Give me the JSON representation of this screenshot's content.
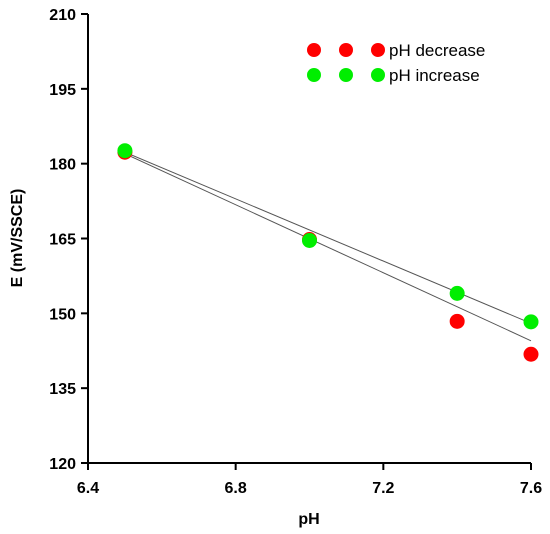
{
  "chart_data": {
    "type": "scatter",
    "xlabel": "pH",
    "ylabel": "E  (mV/SSCE)",
    "xlim": [
      6.4,
      7.6
    ],
    "ylim": [
      120,
      210
    ],
    "x_ticks": [
      "6.4",
      "6.8",
      "7.2",
      "7.6"
    ],
    "y_ticks": [
      "120",
      "135",
      "150",
      "165",
      "180",
      "195",
      "210"
    ],
    "grid": false,
    "legend_position": "top-right",
    "series": [
      {
        "name": "pH decrease",
        "color": "#ff0000",
        "x": [
          6.5,
          7.0,
          7.4,
          7.6
        ],
        "y": [
          182.3,
          164.8,
          148.4,
          141.8
        ],
        "fit": [
          [
            6.5,
            182.0
          ],
          [
            7.6,
            144.5
          ]
        ]
      },
      {
        "name": "pH increase",
        "color": "#00ee00",
        "x": [
          6.5,
          7.0,
          7.4,
          7.6
        ],
        "y": [
          182.6,
          164.6,
          154.0,
          148.3
        ],
        "fit": [
          [
            6.5,
            182.3
          ],
          [
            7.6,
            148.0
          ]
        ]
      }
    ]
  }
}
